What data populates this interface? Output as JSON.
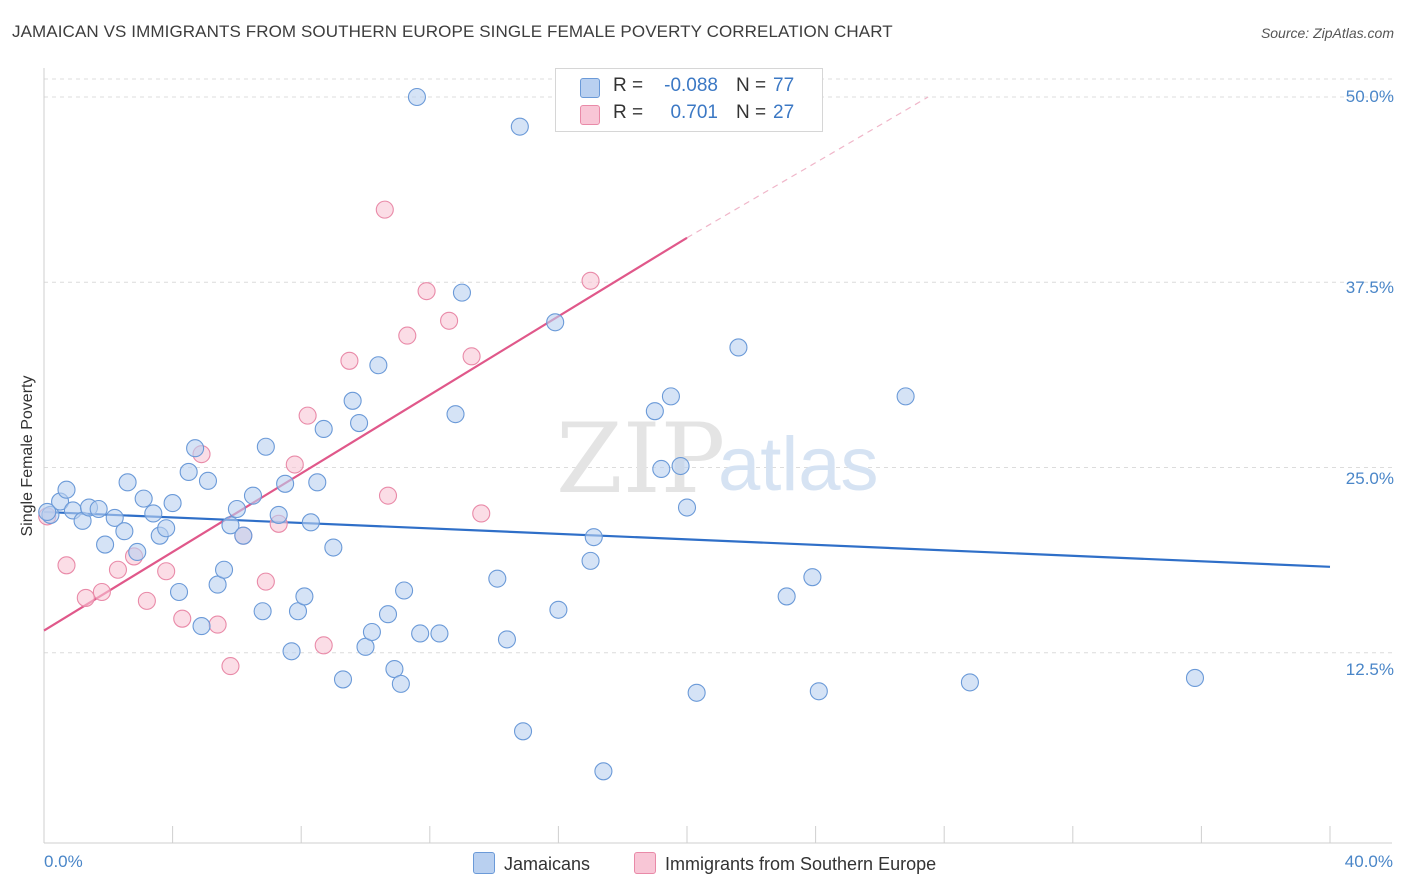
{
  "header": {
    "title": "JAMAICAN VS IMMIGRANTS FROM SOUTHERN EUROPE SINGLE FEMALE POVERTY CORRELATION CHART",
    "source": "Source: ZipAtlas.com"
  },
  "watermark": {
    "zip": "ZIP",
    "atlas": "atlas"
  },
  "colors": {
    "blue_fill": "#b9d0f0",
    "blue_stroke": "#6b9ad8",
    "blue_line": "#2f6fc8",
    "pink_fill": "#f8c6d6",
    "pink_stroke": "#e98aa8",
    "pink_line": "#e0588a",
    "grid": "#dcdcdc",
    "tick_label": "#4a86c8"
  },
  "legend": {
    "r_label": "R =",
    "n_label": "N =",
    "rows": [
      {
        "series": "Jamaicans",
        "r": "-0.088",
        "n": "77"
      },
      {
        "series": "Immigrants from Southern Europe",
        "r": "0.701",
        "n": "27"
      }
    ]
  },
  "chart_data": {
    "type": "scatter",
    "title": "JAMAICAN VS IMMIGRANTS FROM SOUTHERN EUROPE SINGLE FEMALE POVERTY CORRELATION CHART",
    "xlabel": "",
    "ylabel": "Single Female Poverty",
    "xlim": [
      0,
      40
    ],
    "ylim": [
      0,
      50
    ],
    "x_tick_labels": [
      "0.0%",
      "40.0%"
    ],
    "y_ticks": [
      12.5,
      25.0,
      37.5,
      50.0
    ],
    "y_tick_labels": [
      "12.5%",
      "25.0%",
      "37.5%",
      "50.0%"
    ],
    "grid": true,
    "legend_position": "bottom",
    "series": [
      {
        "name": "Jamaicans",
        "color": "#6b9ad8",
        "trend": {
          "x": [
            0,
            40
          ],
          "y": [
            22.0,
            18.3
          ]
        },
        "points": [
          [
            0.2,
            21.8
          ],
          [
            0.5,
            22.7
          ],
          [
            0.7,
            23.5
          ],
          [
            0.9,
            22.1
          ],
          [
            1.2,
            21.4
          ],
          [
            1.4,
            22.3
          ],
          [
            1.7,
            22.2
          ],
          [
            1.9,
            19.8
          ],
          [
            2.2,
            21.6
          ],
          [
            2.5,
            20.7
          ],
          [
            2.6,
            24.0
          ],
          [
            2.9,
            19.3
          ],
          [
            3.1,
            22.9
          ],
          [
            3.4,
            21.9
          ],
          [
            3.6,
            20.4
          ],
          [
            3.8,
            20.9
          ],
          [
            4.0,
            22.6
          ],
          [
            4.2,
            16.6
          ],
          [
            4.5,
            24.7
          ],
          [
            4.7,
            26.3
          ],
          [
            4.9,
            14.3
          ],
          [
            5.1,
            24.1
          ],
          [
            5.4,
            17.1
          ],
          [
            5.6,
            18.1
          ],
          [
            5.8,
            21.1
          ],
          [
            6.0,
            22.2
          ],
          [
            6.2,
            20.4
          ],
          [
            6.5,
            23.1
          ],
          [
            6.8,
            15.3
          ],
          [
            6.9,
            26.4
          ],
          [
            7.3,
            21.8
          ],
          [
            7.5,
            23.9
          ],
          [
            7.7,
            12.6
          ],
          [
            7.9,
            15.3
          ],
          [
            8.1,
            16.3
          ],
          [
            8.3,
            21.3
          ],
          [
            8.5,
            24.0
          ],
          [
            8.7,
            27.6
          ],
          [
            9.0,
            19.6
          ],
          [
            9.3,
            10.7
          ],
          [
            9.6,
            29.5
          ],
          [
            9.8,
            28.0
          ],
          [
            10.0,
            12.9
          ],
          [
            10.2,
            13.9
          ],
          [
            10.4,
            31.9
          ],
          [
            10.7,
            15.1
          ],
          [
            10.9,
            11.4
          ],
          [
            11.1,
            10.4
          ],
          [
            11.2,
            16.7
          ],
          [
            11.6,
            50.0
          ],
          [
            11.7,
            13.8
          ],
          [
            12.3,
            13.8
          ],
          [
            12.8,
            28.6
          ],
          [
            13.0,
            36.8
          ],
          [
            14.1,
            17.5
          ],
          [
            14.4,
            13.4
          ],
          [
            14.8,
            48.0
          ],
          [
            14.9,
            7.2
          ],
          [
            15.9,
            34.8
          ],
          [
            16.0,
            15.4
          ],
          [
            17.0,
            18.7
          ],
          [
            17.1,
            20.3
          ],
          [
            17.4,
            4.5
          ],
          [
            19.0,
            28.8
          ],
          [
            19.2,
            24.9
          ],
          [
            19.5,
            29.8
          ],
          [
            19.8,
            25.1
          ],
          [
            20.0,
            22.3
          ],
          [
            20.3,
            9.8
          ],
          [
            21.6,
            33.1
          ],
          [
            23.1,
            16.3
          ],
          [
            23.9,
            17.6
          ],
          [
            24.1,
            9.9
          ],
          [
            26.8,
            29.8
          ],
          [
            28.8,
            10.5
          ],
          [
            35.8,
            10.8
          ],
          [
            0.1,
            22.0
          ]
        ]
      },
      {
        "name": "Immigrants from Southern Europe",
        "color": "#e98aa8",
        "trend": {
          "x": [
            0,
            20
          ],
          "y": [
            14.0,
            40.5
          ]
        },
        "trend_extension": {
          "x": [
            20,
            27.5
          ],
          "y": [
            40.5,
            50.0
          ]
        },
        "points": [
          [
            0.1,
            21.7
          ],
          [
            0.7,
            18.4
          ],
          [
            1.3,
            16.2
          ],
          [
            1.8,
            16.6
          ],
          [
            2.3,
            18.1
          ],
          [
            2.8,
            19.0
          ],
          [
            3.2,
            16.0
          ],
          [
            3.8,
            18.0
          ],
          [
            4.3,
            14.8
          ],
          [
            4.9,
            25.9
          ],
          [
            5.4,
            14.4
          ],
          [
            5.8,
            11.6
          ],
          [
            6.2,
            20.4
          ],
          [
            6.9,
            17.3
          ],
          [
            7.3,
            21.2
          ],
          [
            7.8,
            25.2
          ],
          [
            8.2,
            28.5
          ],
          [
            8.7,
            13.0
          ],
          [
            9.5,
            32.2
          ],
          [
            10.6,
            42.4
          ],
          [
            10.7,
            23.1
          ],
          [
            11.3,
            33.9
          ],
          [
            11.9,
            36.9
          ],
          [
            12.6,
            34.9
          ],
          [
            13.3,
            32.5
          ],
          [
            13.6,
            21.9
          ],
          [
            17.0,
            37.6
          ]
        ]
      }
    ]
  }
}
